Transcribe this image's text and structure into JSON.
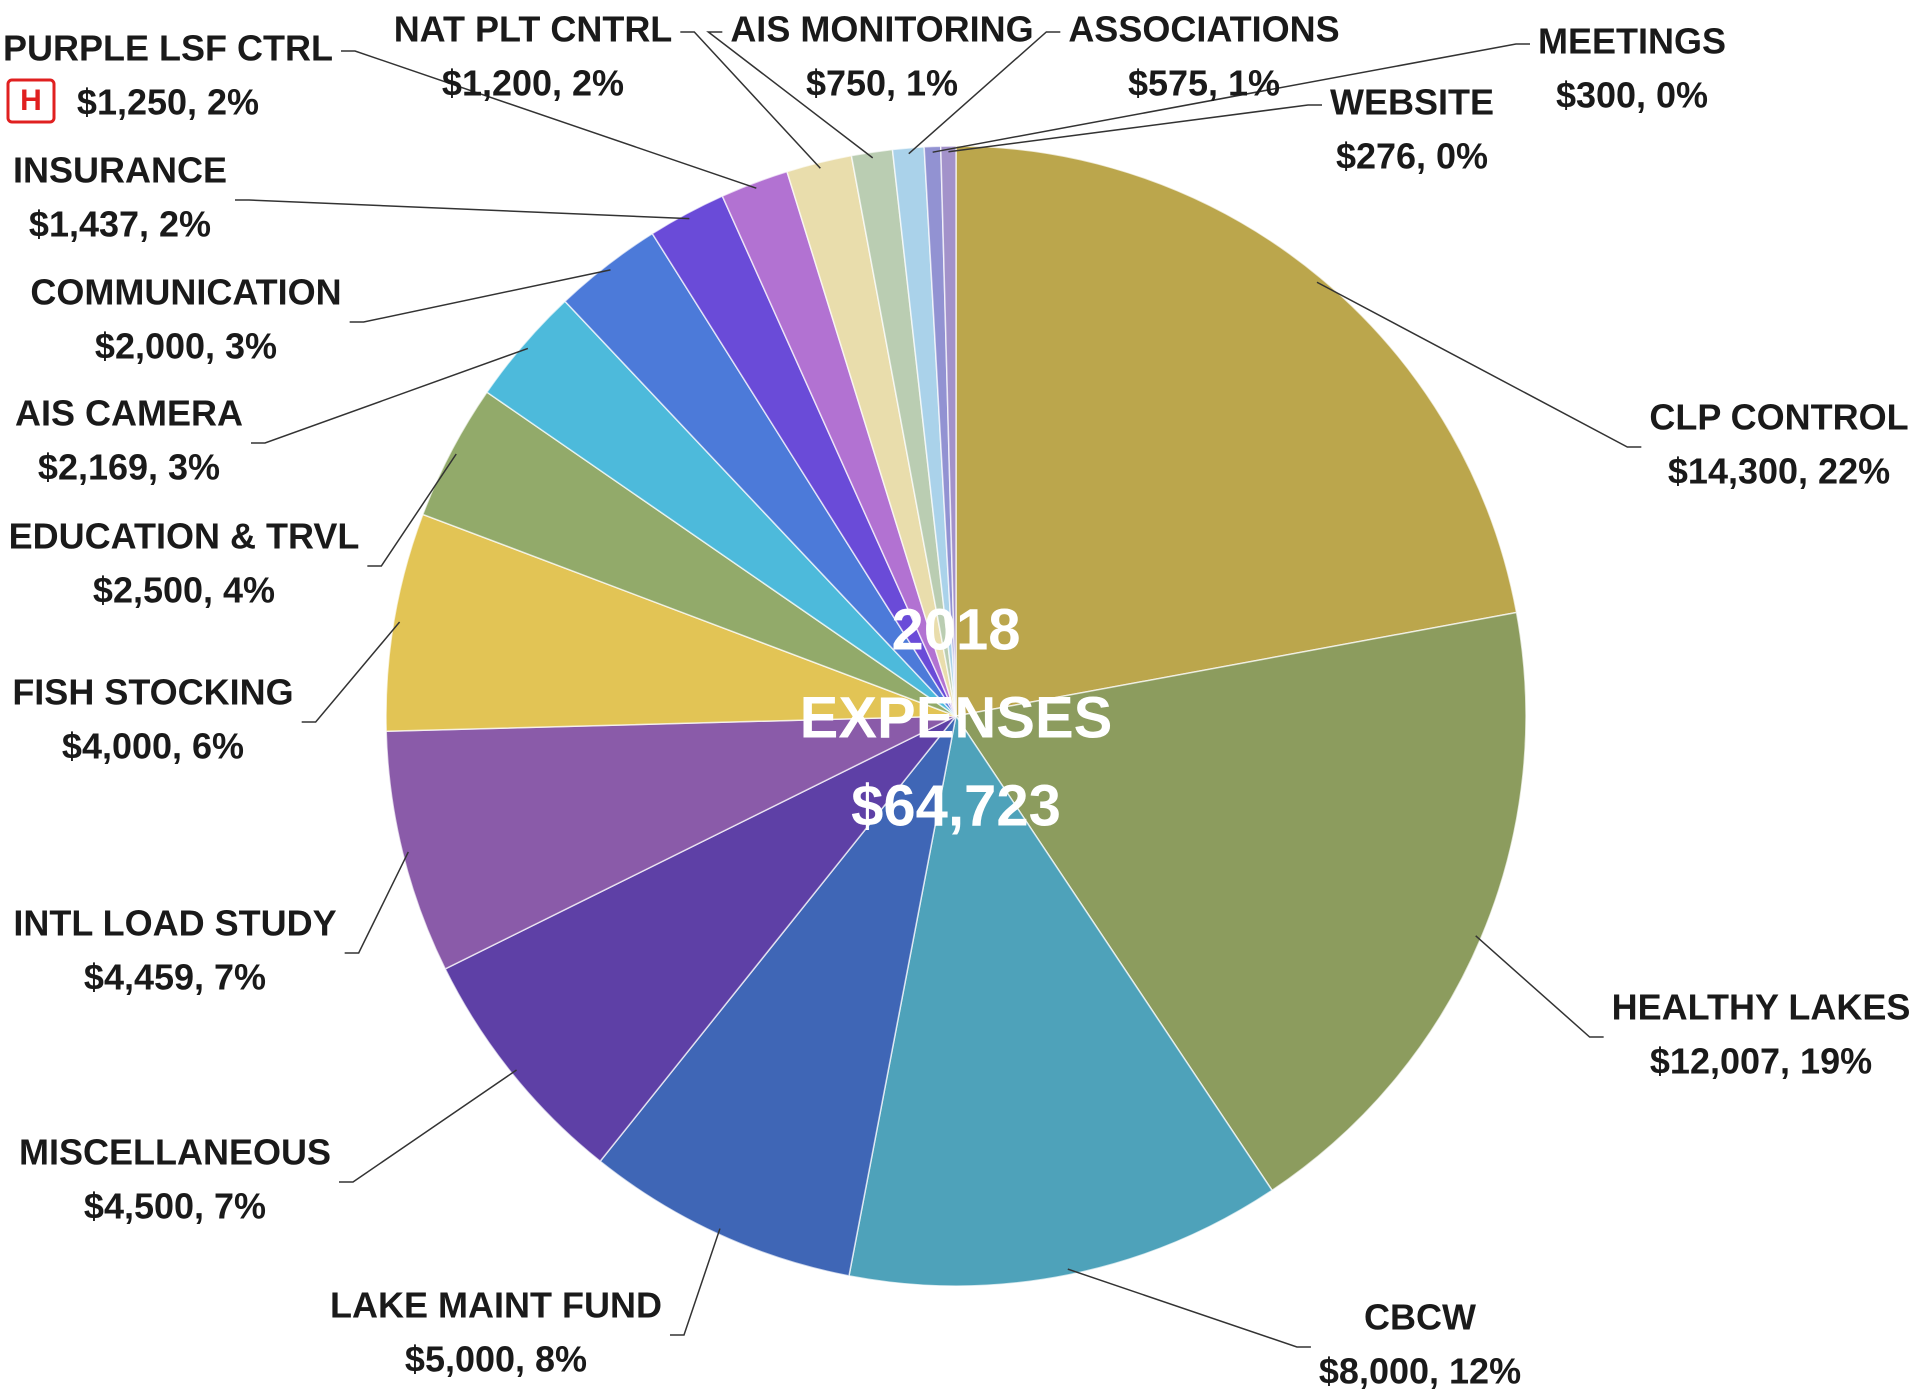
{
  "chart_data": {
    "type": "pie",
    "center_label": [
      "2018",
      "EXPENSES",
      "$64,723"
    ],
    "badge": "H",
    "categories": [
      "CLP CONTROL",
      "HEALTHY LAKES",
      "CBCW",
      "LAKE MAINT FUND",
      "MISCELLANEOUS",
      "INTL LOAD STUDY",
      "FISH STOCKING",
      "EDUCATION & TRVL",
      "AIS CAMERA",
      "COMMUNICATION",
      "INSURANCE",
      "PURPLE LSF CTRL",
      "NAT PLT CNTRL",
      "AIS MONITORING",
      "ASSOCIATIONS",
      "MEETINGS",
      "WEBSITE"
    ],
    "values": [
      14300,
      12007,
      8000,
      5000,
      4500,
      4459,
      4000,
      2500,
      2169,
      2000,
      1437,
      1250,
      1200,
      750,
      575,
      300,
      276
    ],
    "value_labels": [
      "$14,300, 22%",
      "$12,007, 19%",
      "$8,000, 12%",
      "$5,000, 8%",
      "$4,500, 7%",
      "$4,459, 7%",
      "$4,000, 6%",
      "$2,500, 4%",
      "$2,169, 3%",
      "$2,000, 3%",
      "$1,437, 2%",
      "$1,250, 2%",
      "$1,200, 2%",
      "$750, 1%",
      "$575, 1%",
      "$300, 0%",
      "$276, 0%"
    ],
    "colors": [
      "#bba64c",
      "#8c9c5e",
      "#4ea2ba",
      "#3f66b6",
      "#5e40a6",
      "#8a5ba9",
      "#e2c455",
      "#92aa6a",
      "#4dbadb",
      "#4c7ad9",
      "#6a4bd8",
      "#b272d2",
      "#e9ddac",
      "#bacdb2",
      "#aad2ea",
      "#9292d2",
      "#a392ca"
    ]
  }
}
